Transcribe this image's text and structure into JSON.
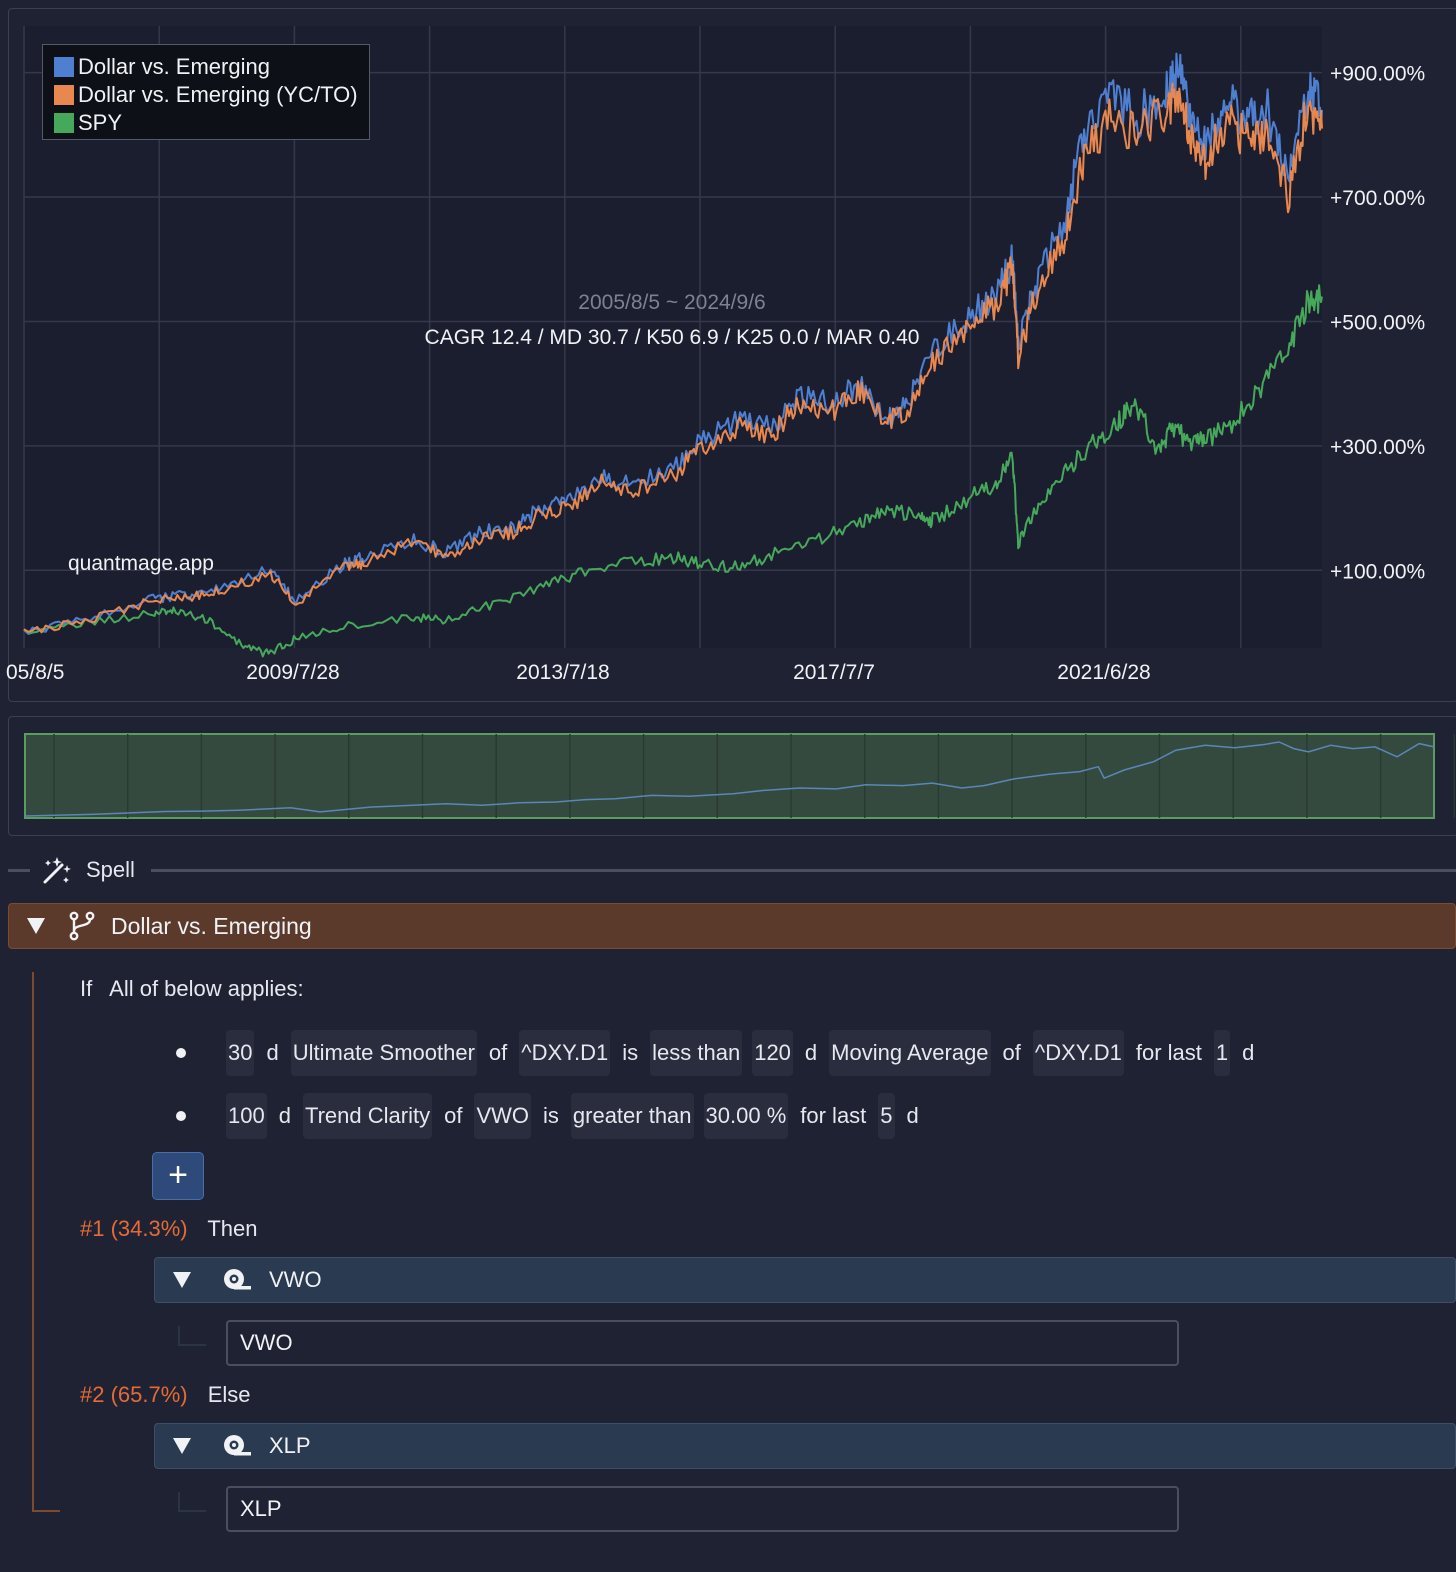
{
  "legend": {
    "items": [
      {
        "label": "Dollar vs. Emerging",
        "color": "#4e7fd1"
      },
      {
        "label": "Dollar vs. Emerging (YC/TO)",
        "color": "#e8874e"
      },
      {
        "label": "SPY",
        "color": "#46a85a"
      }
    ]
  },
  "chart_annotations": {
    "date_range": "2005/8/5 ~ 2024/9/6",
    "stats": "CAGR 12.4 / MD 30.7 / K50 6.9 / K25 0.0 / MAR 0.40",
    "watermark": "quantmage.app"
  },
  "chart_data": {
    "type": "line",
    "title": "",
    "x_tick_labels": [
      "05/8/5",
      "2009/7/28",
      "2013/7/18",
      "2017/7/7",
      "2021/6/28"
    ],
    "y_tick_labels": [
      "+100.00%",
      "+300.00%",
      "+500.00%",
      "+700.00%",
      "+900.00%"
    ],
    "ylim": [
      -25,
      975
    ],
    "xlim": [
      2005.6,
      2024.7
    ],
    "y_unit": "percent return",
    "grid": true,
    "legend_placement": "top-left",
    "series": [
      {
        "name": "Dollar vs. Emerging",
        "color": "#4e7fd1",
        "x": [
          2005.6,
          2006.5,
          2007.5,
          2008.0,
          2008.5,
          2009.2,
          2009.6,
          2010.3,
          2010.6,
          2011.3,
          2011.8,
          2012.3,
          2012.8,
          2013.2,
          2013.6,
          2014.1,
          2014.6,
          2015.2,
          2015.6,
          2016.1,
          2016.6,
          2017.0,
          2017.5,
          2017.9,
          2018.3,
          2018.6,
          2019.0,
          2019.5,
          2019.9,
          2020.15,
          2020.23,
          2020.5,
          2020.9,
          2021.2,
          2021.6,
          2022.0,
          2022.4,
          2022.6,
          2022.8,
          2023.0,
          2023.3,
          2023.6,
          2023.9,
          2024.2,
          2024.5,
          2024.7
        ],
        "y": [
          0,
          20,
          55,
          60,
          70,
          100,
          50,
          110,
          120,
          150,
          130,
          160,
          170,
          200,
          210,
          250,
          240,
          270,
          310,
          340,
          330,
          380,
          370,
          400,
          340,
          370,
          450,
          510,
          540,
          600,
          460,
          560,
          660,
          800,
          860,
          830,
          870,
          900,
          820,
          780,
          860,
          820,
          840,
          720,
          880,
          840
        ]
      },
      {
        "name": "Dollar vs. Emerging (YC/TO)",
        "color": "#e8874e",
        "x": [
          2005.6,
          2006.5,
          2007.5,
          2008.0,
          2008.5,
          2009.2,
          2009.6,
          2010.3,
          2010.6,
          2011.3,
          2011.8,
          2012.3,
          2012.8,
          2013.2,
          2013.6,
          2014.1,
          2014.6,
          2015.2,
          2015.6,
          2016.1,
          2016.6,
          2017.0,
          2017.5,
          2017.9,
          2018.3,
          2018.6,
          2019.0,
          2019.5,
          2019.9,
          2020.15,
          2020.23,
          2020.5,
          2020.9,
          2021.2,
          2021.6,
          2022.0,
          2022.4,
          2022.6,
          2022.8,
          2023.0,
          2023.3,
          2023.6,
          2023.9,
          2024.2,
          2024.5,
          2024.7
        ],
        "y": [
          0,
          18,
          52,
          57,
          67,
          95,
          45,
          105,
          113,
          143,
          123,
          152,
          160,
          190,
          200,
          240,
          230,
          258,
          300,
          330,
          318,
          370,
          358,
          388,
          335,
          360,
          440,
          495,
          525,
          590,
          440,
          545,
          630,
          770,
          830,
          800,
          840,
          860,
          790,
          750,
          830,
          790,
          810,
          700,
          850,
          810
        ]
      },
      {
        "name": "SPY",
        "color": "#46a85a",
        "x": [
          2005.6,
          2006.5,
          2007.5,
          2007.8,
          2008.3,
          2008.8,
          2009.2,
          2009.6,
          2010.3,
          2011.3,
          2011.8,
          2012.5,
          2013.2,
          2013.8,
          2014.6,
          2015.2,
          2015.6,
          2016.1,
          2016.6,
          2017.3,
          2017.9,
          2018.3,
          2018.8,
          2019.0,
          2019.5,
          2019.9,
          2020.15,
          2020.23,
          2020.5,
          2020.9,
          2021.3,
          2021.7,
          2021.95,
          2022.3,
          2022.5,
          2022.8,
          2023.0,
          2023.4,
          2023.8,
          2024.2,
          2024.5,
          2024.7
        ],
        "y": [
          0,
          15,
          30,
          35,
          20,
          -20,
          -35,
          -10,
          10,
          25,
          20,
          45,
          75,
          95,
          115,
          120,
          110,
          105,
          125,
          150,
          175,
          200,
          185,
          180,
          215,
          240,
          280,
          140,
          200,
          260,
          300,
          340,
          370,
          290,
          330,
          300,
          310,
          340,
          390,
          460,
          530,
          540
        ]
      }
    ]
  },
  "spell": {
    "label": "Spell"
  },
  "branch": {
    "label": "Dollar vs. Emerging"
  },
  "condition": {
    "if_word": "If",
    "mode": "All of below applies:",
    "rules": [
      {
        "tokens": [
          {
            "text": "30",
            "boxed": true
          },
          {
            "text": "d",
            "boxed": false
          },
          {
            "text": "Ultimate Smoother",
            "boxed": true
          },
          {
            "text": "of",
            "boxed": false
          },
          {
            "text": "^DXY.D1",
            "boxed": true
          },
          {
            "text": "is",
            "boxed": false
          },
          {
            "text": "less than",
            "boxed": true
          },
          {
            "text": "120",
            "boxed": true
          },
          {
            "text": "d",
            "boxed": false
          },
          {
            "text": "Moving Average",
            "boxed": true
          },
          {
            "text": "of",
            "boxed": false
          },
          {
            "text": "^DXY.D1",
            "boxed": true
          },
          {
            "text": "for last",
            "boxed": false
          },
          {
            "text": "1",
            "boxed": true
          },
          {
            "text": "d",
            "boxed": false
          }
        ]
      },
      {
        "tokens": [
          {
            "text": "100",
            "boxed": true
          },
          {
            "text": "d",
            "boxed": false
          },
          {
            "text": "Trend Clarity",
            "boxed": true
          },
          {
            "text": "of",
            "boxed": false
          },
          {
            "text": "VWO",
            "boxed": true
          },
          {
            "text": "is",
            "boxed": false
          },
          {
            "text": "greater than",
            "boxed": true
          },
          {
            "text": "30.00 %",
            "boxed": true
          },
          {
            "text": "for last",
            "boxed": false
          },
          {
            "text": "5",
            "boxed": true
          },
          {
            "text": "d",
            "boxed": false
          }
        ]
      }
    ],
    "add_label": "+"
  },
  "then": {
    "pct": "#1 (34.3%)",
    "word": "Then",
    "asset_header": "VWO",
    "ticker": "VWO"
  },
  "else": {
    "pct": "#2 (65.7%)",
    "word": "Else",
    "asset_header": "XLP",
    "ticker": "XLP"
  }
}
